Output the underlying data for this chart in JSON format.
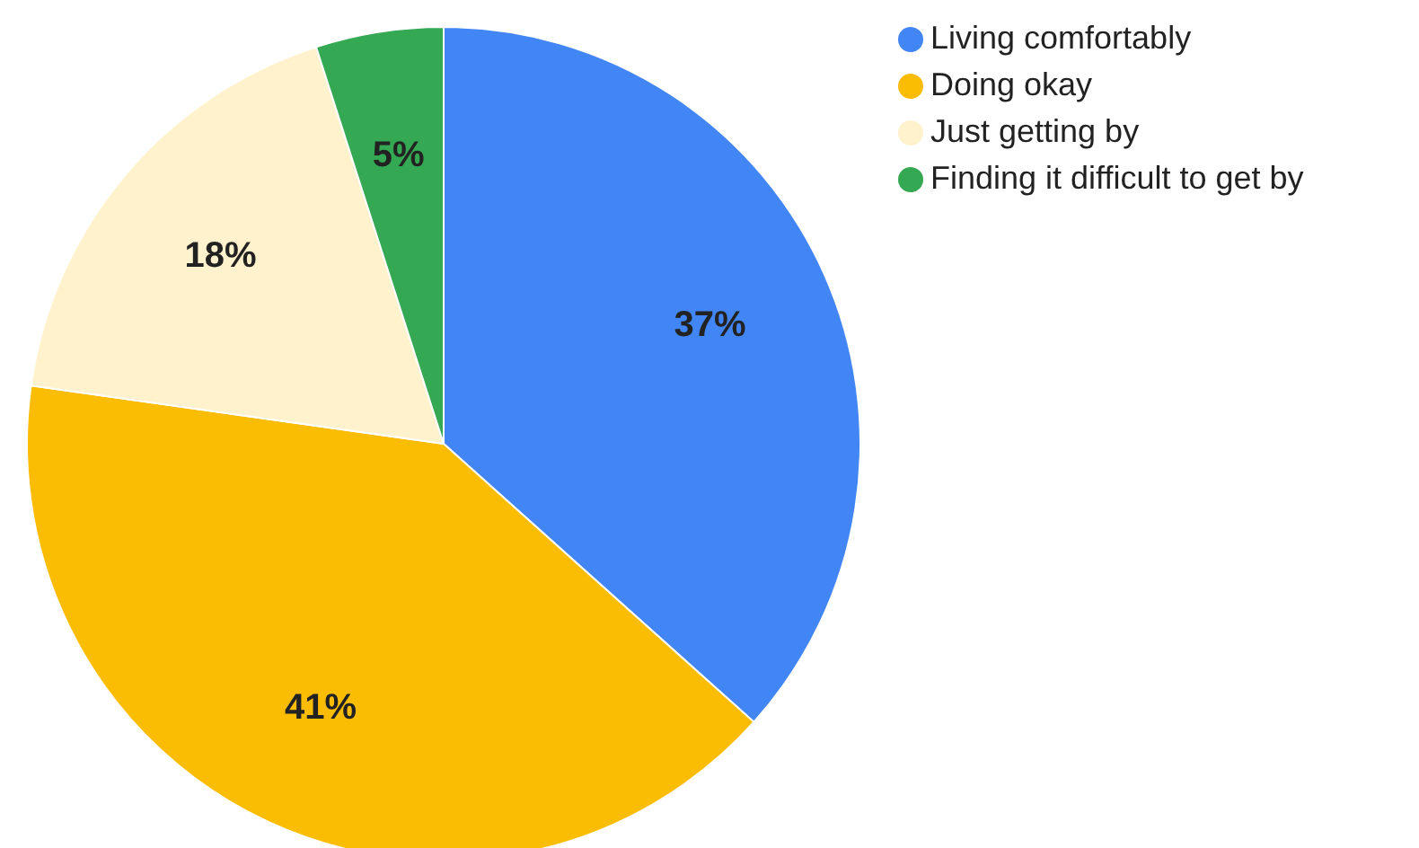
{
  "chart_data": {
    "type": "pie",
    "categories": [
      "Living comfortably",
      "Doing okay",
      "Just getting by",
      "Finding it difficult to get by"
    ],
    "values": [
      37,
      41,
      18,
      5
    ],
    "colors": [
      "#4285f4",
      "#fbbc04",
      "#fff2cc",
      "#34a853"
    ],
    "value_labels": [
      "37%",
      "41%",
      "18%",
      "5%"
    ],
    "legend": "top right"
  }
}
